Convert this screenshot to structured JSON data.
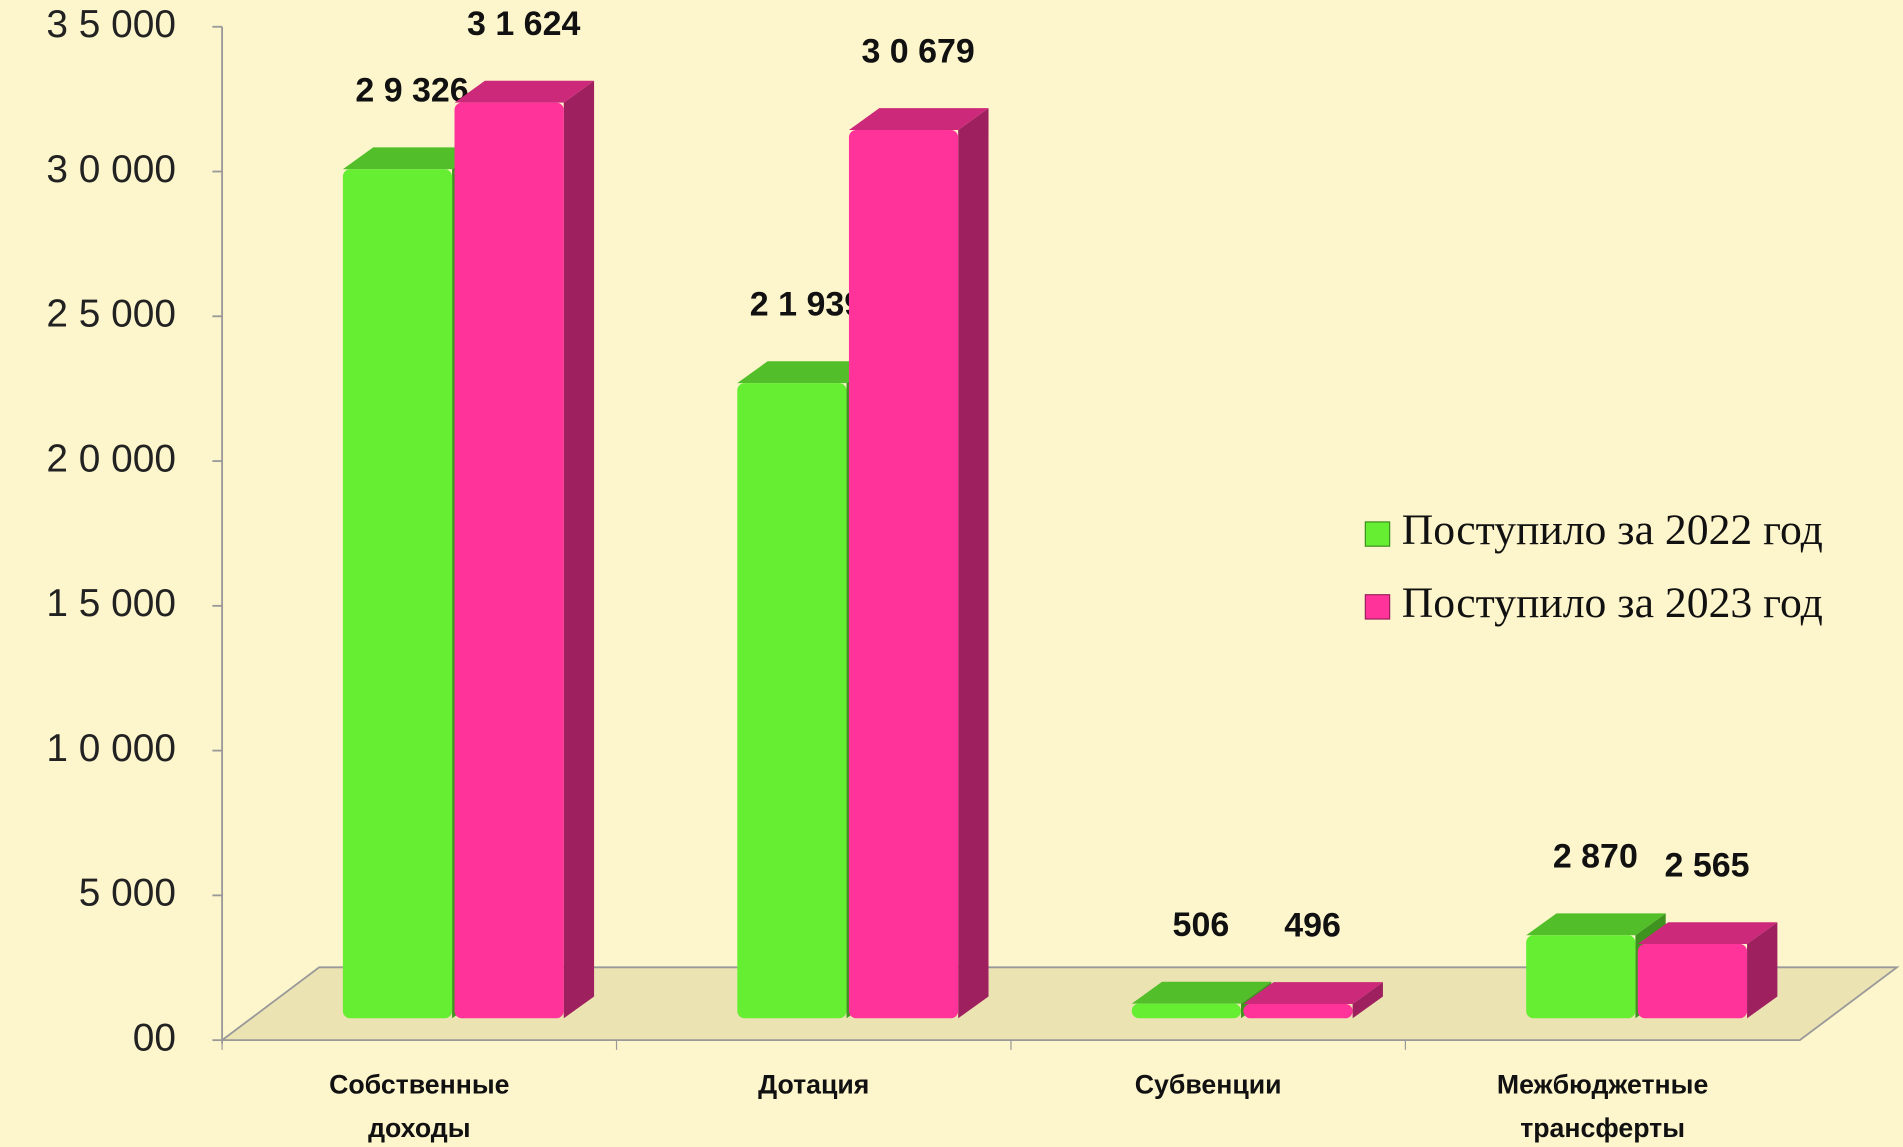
{
  "chart_data": {
    "type": "bar3d",
    "categories": [
      "Собственные доходы",
      "Дотация",
      "Субвенции",
      "Межбюджетные трансферты"
    ],
    "series": [
      {
        "name": "Поступило за 2022 год",
        "color": "#66ee33",
        "values": [
          29326,
          21939,
          506,
          2870
        ],
        "value_labels": [
          "2 9 326",
          "2 1 939",
          "506",
          "2 870"
        ]
      },
      {
        "name": "Поступило за 2023 год",
        "color": "#ff3399",
        "values": [
          31624,
          30679,
          496,
          2565
        ],
        "value_labels": [
          "3 1 624",
          "3 0 679",
          "496",
          "2 565"
        ]
      }
    ],
    "ylim": [
      0,
      35000
    ],
    "yticks": [
      {
        "value": 0,
        "label": "00"
      },
      {
        "value": 5000,
        "label": "5 000"
      },
      {
        "value": 10000,
        "label": "1 0 000"
      },
      {
        "value": 15000,
        "label": "1 5 000"
      },
      {
        "value": 20000,
        "label": "2 0 000"
      },
      {
        "value": 25000,
        "label": "2 5 000"
      },
      {
        "value": 30000,
        "label": "3 0 000"
      },
      {
        "value": 35000,
        "label": "3 5 000"
      }
    ],
    "legend": "right"
  }
}
